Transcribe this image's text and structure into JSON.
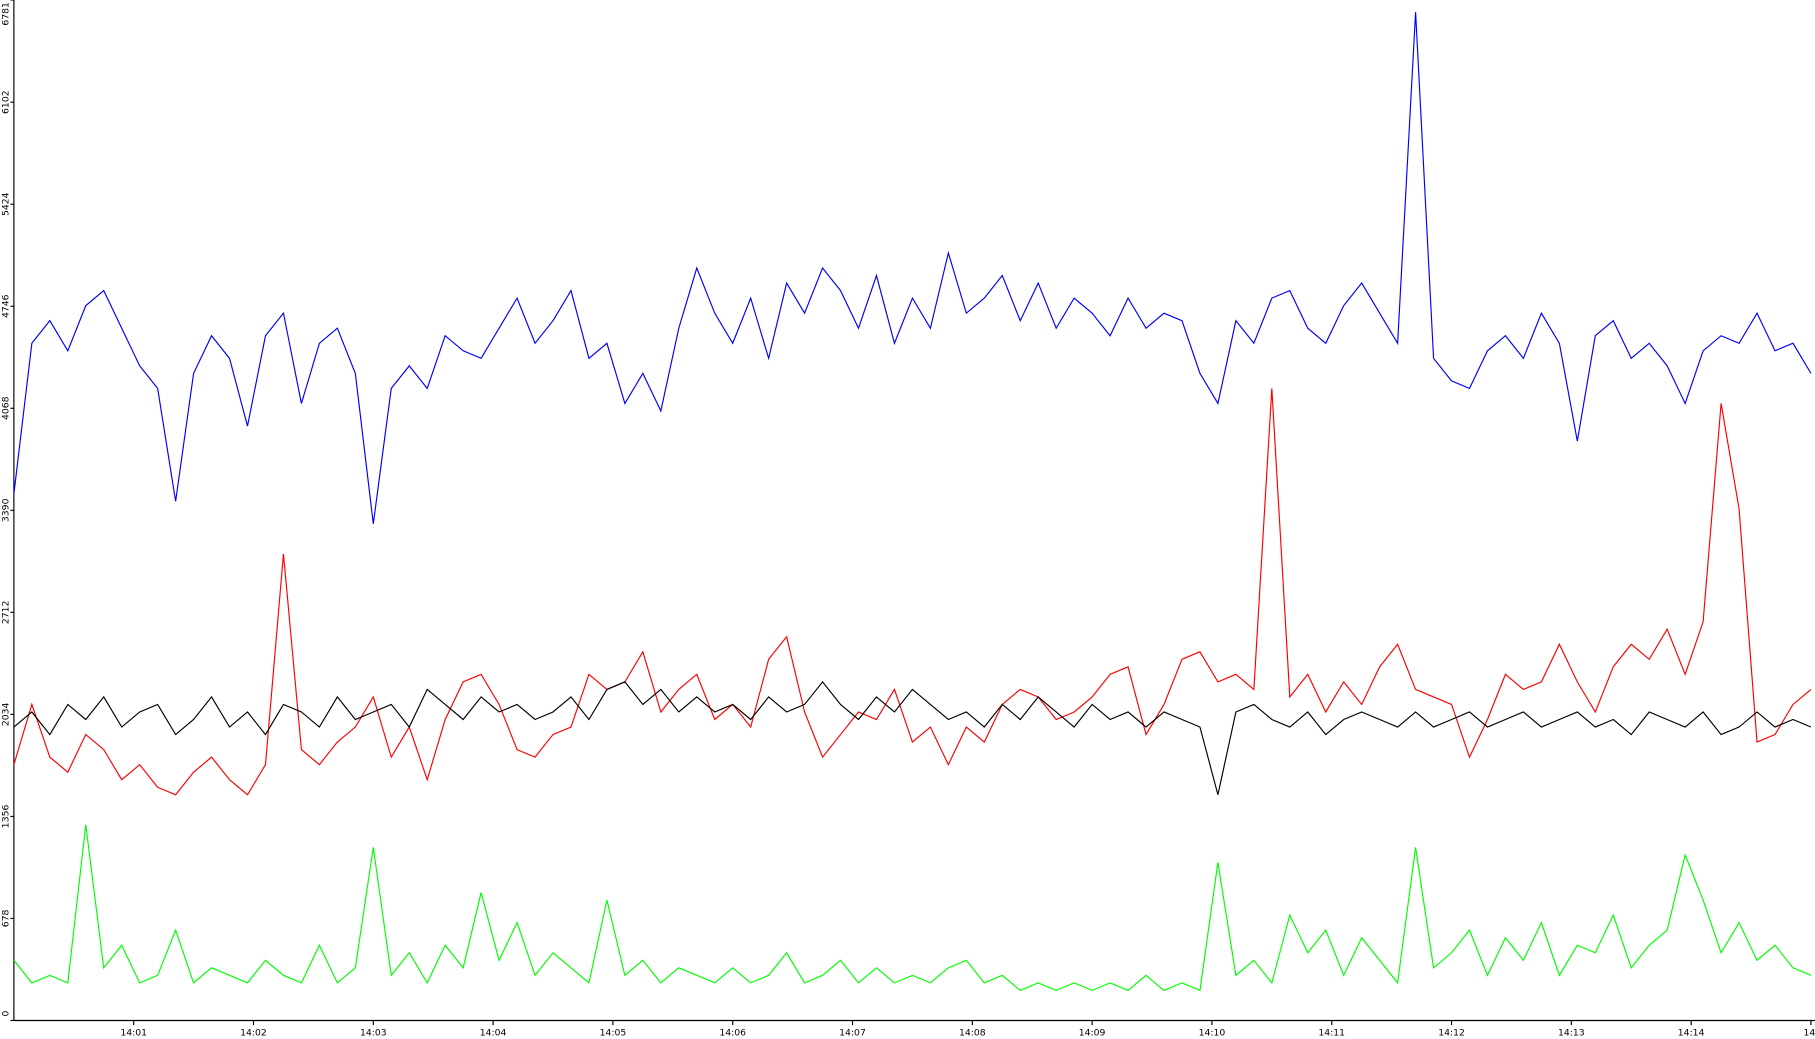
{
  "chart_data": {
    "type": "line",
    "x": [
      840,
      840.15,
      840.3,
      840.45,
      840.6,
      840.75,
      840.9,
      841.05,
      841.2,
      841.35,
      841.5,
      841.65,
      841.8,
      841.95,
      842.1,
      842.25,
      842.4,
      842.55,
      842.7,
      842.85,
      843,
      843.15,
      843.3,
      843.45,
      843.6,
      843.75,
      843.9,
      844.05,
      844.2,
      844.35,
      844.5,
      844.65,
      844.8,
      844.95,
      845.1,
      845.25,
      845.4,
      845.55,
      845.7,
      845.85,
      846,
      846.15,
      846.3,
      846.45,
      846.6,
      846.75,
      846.9,
      847.05,
      847.2,
      847.35,
      847.5,
      847.65,
      847.8,
      847.95,
      848.1,
      848.25,
      848.4,
      848.55,
      848.7,
      848.85,
      849,
      849.15,
      849.3,
      849.45,
      849.6,
      849.75,
      849.9,
      850.05,
      850.2,
      850.35,
      850.5,
      850.65,
      850.8,
      850.95,
      851.1,
      851.25,
      851.4,
      851.55,
      851.7,
      851.85,
      852,
      852.15,
      852.3,
      852.45,
      852.6,
      852.75,
      852.9,
      853.05,
      853.2,
      853.35,
      853.5,
      853.65,
      853.8,
      853.95,
      854.1,
      854.25,
      854.4,
      854.55,
      854.7,
      854.85,
      855
    ],
    "series": [
      {
        "color": "#0000ff",
        "values": [
          3500,
          4500,
          4650,
          4450,
          4750,
          4850,
          4600,
          4350,
          4200,
          3450,
          4300,
          4550,
          4400,
          3950,
          4550,
          4700,
          4100,
          4500,
          4600,
          4300,
          3300,
          4200,
          4350,
          4200,
          4550,
          4450,
          4400,
          4600,
          4800,
          4500,
          4650,
          4850,
          4400,
          4500,
          4100,
          4300,
          4050,
          4600,
          5000,
          4700,
          4500,
          4800,
          4400,
          4900,
          4700,
          5000,
          4850,
          4600,
          4950,
          4500,
          4800,
          4600,
          5100,
          4700,
          4800,
          4950,
          4650,
          4900,
          4600,
          4800,
          4700,
          4550,
          4800,
          4600,
          4700,
          4650,
          4300,
          4100,
          4650,
          4500,
          4800,
          4850,
          4600,
          4500,
          4750,
          4900,
          4700,
          4500,
          6700,
          4400,
          4250,
          4200,
          4450,
          4550,
          4400,
          4700,
          4500,
          3850,
          4550,
          4650,
          4400,
          4500,
          4350,
          4100,
          4450,
          4550,
          4500,
          4700,
          4450,
          4500,
          4300
        ]
      },
      {
        "color": "#ff0000",
        "values": [
          1700,
          2100,
          1750,
          1650,
          1900,
          1800,
          1600,
          1700,
          1550,
          1500,
          1650,
          1750,
          1600,
          1500,
          1700,
          3100,
          1800,
          1700,
          1850,
          1950,
          2150,
          1750,
          1950,
          1600,
          2000,
          2250,
          2300,
          2100,
          1800,
          1750,
          1900,
          1950,
          2300,
          2200,
          2250,
          2450,
          2050,
          2200,
          2300,
          2000,
          2100,
          1950,
          2400,
          2550,
          2050,
          1750,
          1900,
          2050,
          2000,
          2200,
          1850,
          1950,
          1700,
          1950,
          1850,
          2100,
          2200,
          2150,
          2000,
          2050,
          2150,
          2300,
          2350,
          1900,
          2100,
          2400,
          2450,
          2250,
          2300,
          2200,
          4200,
          2150,
          2300,
          2050,
          2250,
          2100,
          2350,
          2500,
          2200,
          2150,
          2100,
          1750,
          2000,
          2300,
          2200,
          2250,
          2500,
          2250,
          2050,
          2350,
          2500,
          2400,
          2600,
          2300,
          2650,
          4100,
          3400,
          1850,
          1900,
          2100,
          2200
        ]
      },
      {
        "color": "#000000",
        "values": [
          1950,
          2050,
          1900,
          2100,
          2000,
          2150,
          1950,
          2050,
          2100,
          1900,
          2000,
          2150,
          1950,
          2050,
          1900,
          2100,
          2050,
          1950,
          2150,
          2000,
          2050,
          2100,
          1950,
          2200,
          2100,
          2000,
          2150,
          2050,
          2100,
          2000,
          2050,
          2150,
          2000,
          2200,
          2250,
          2100,
          2200,
          2050,
          2150,
          2050,
          2100,
          2000,
          2150,
          2050,
          2100,
          2250,
          2100,
          2000,
          2150,
          2050,
          2200,
          2100,
          2000,
          2050,
          1950,
          2100,
          2000,
          2150,
          2050,
          1950,
          2100,
          2000,
          2050,
          1950,
          2050,
          2000,
          1950,
          1500,
          2050,
          2100,
          2000,
          1950,
          2050,
          1900,
          2000,
          2050,
          2000,
          1950,
          2050,
          1950,
          2000,
          2050,
          1950,
          2000,
          2050,
          1950,
          2000,
          2050,
          1950,
          2000,
          1900,
          2050,
          2000,
          1950,
          2050,
          1900,
          1950,
          2050,
          1950,
          2000,
          1950
        ]
      },
      {
        "color": "#00ff00",
        "values": [
          400,
          250,
          300,
          250,
          1300,
          350,
          500,
          250,
          300,
          600,
          250,
          350,
          300,
          250,
          400,
          300,
          250,
          500,
          250,
          350,
          1150,
          300,
          450,
          250,
          500,
          350,
          850,
          400,
          650,
          300,
          450,
          350,
          250,
          800,
          300,
          400,
          250,
          350,
          300,
          250,
          350,
          250,
          300,
          450,
          250,
          300,
          400,
          250,
          350,
          250,
          300,
          250,
          350,
          400,
          250,
          300,
          200,
          250,
          200,
          250,
          200,
          250,
          200,
          300,
          200,
          250,
          200,
          1050,
          300,
          400,
          250,
          700,
          450,
          600,
          300,
          550,
          400,
          250,
          1150,
          350,
          450,
          600,
          300,
          550,
          400,
          650,
          300,
          500,
          450,
          700,
          350,
          500,
          600,
          1100,
          800,
          450,
          650,
          400,
          500,
          350,
          300
        ]
      }
    ],
    "xlim": [
      840,
      855
    ],
    "xticks": [
      {
        "value": 841,
        "label": "14:01"
      },
      {
        "value": 842,
        "label": "14:02"
      },
      {
        "value": 843,
        "label": "14:03"
      },
      {
        "value": 844,
        "label": "14:04"
      },
      {
        "value": 845,
        "label": "14:05"
      },
      {
        "value": 846,
        "label": "14:06"
      },
      {
        "value": 847,
        "label": "14:07"
      },
      {
        "value": 848,
        "label": "14:08"
      },
      {
        "value": 849,
        "label": "14:09"
      },
      {
        "value": 850,
        "label": "14:10"
      },
      {
        "value": 851,
        "label": "14:11"
      },
      {
        "value": 852,
        "label": "14:12"
      },
      {
        "value": 853,
        "label": "14:13"
      },
      {
        "value": 854,
        "label": "14:14"
      },
      {
        "value": 855,
        "label": "14:"
      }
    ],
    "ylim": [
      0,
      6781
    ],
    "yticks": [
      0,
      678,
      1356,
      2034,
      2712,
      3390,
      4068,
      4746,
      5424,
      6102,
      6781
    ],
    "grid": false
  }
}
